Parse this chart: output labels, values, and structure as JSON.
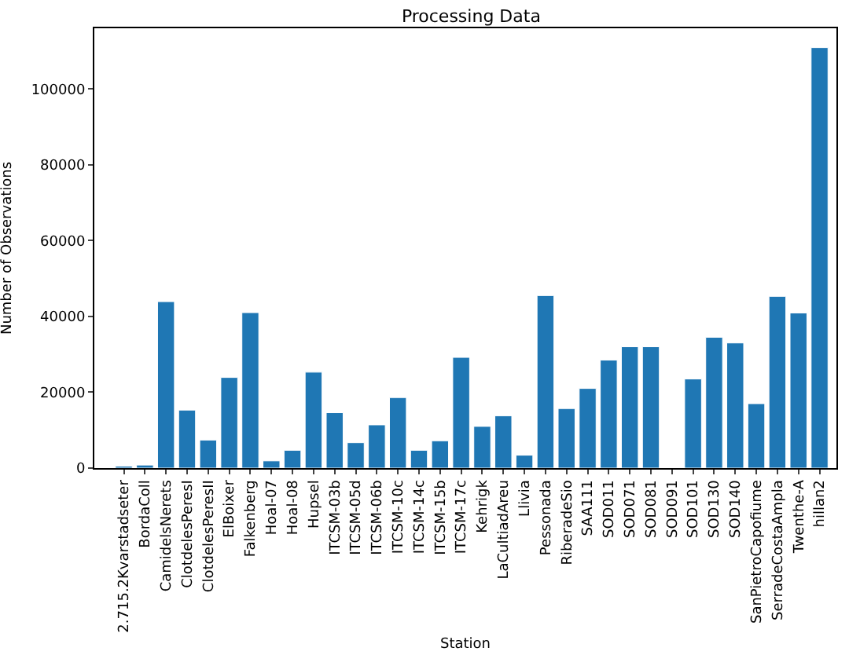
{
  "chart_data": {
    "type": "bar",
    "title": "Processing Data",
    "xlabel": "Station",
    "ylabel": "Number of Observations",
    "categories": [
      "2.715.2Kvarstadseter",
      "BordaColl",
      "CamidelsNerets",
      "ClotdelesPeresI",
      "ClotdelesPeresII",
      "ElBoixer",
      "Falkenberg",
      "Hoal-07",
      "Hoal-08",
      "Hupsel",
      "ITCSM-03b",
      "ITCSM-05d",
      "ITCSM-06b",
      "ITCSM-10c",
      "ITCSM-14c",
      "ITCSM-15b",
      "ITCSM-17c",
      "Kehrigk",
      "LaCultiadAreu",
      "Llivia",
      "Pessonada",
      "RiberadeSio",
      "SAA111",
      "SOD011",
      "SOD071",
      "SOD081",
      "SOD091",
      "SOD101",
      "SOD130",
      "SOD140",
      "SanPietroCapofiume",
      "SerradeCostaAmpla",
      "Twenthe-A",
      "hillan2"
    ],
    "values": [
      500,
      800,
      43900,
      15300,
      7400,
      23900,
      41000,
      1900,
      4700,
      25300,
      14600,
      6700,
      11400,
      18600,
      4700,
      7200,
      29200,
      11000,
      13800,
      3400,
      45500,
      15700,
      21000,
      28500,
      32000,
      32000,
      null,
      23500,
      34500,
      33000,
      17000,
      45300,
      40900,
      110900
    ],
    "color": "#1f77b4",
    "ylim": [
      0,
      116000
    ],
    "yticks": [
      0,
      20000,
      40000,
      60000,
      80000,
      100000
    ],
    "legend": false
  }
}
